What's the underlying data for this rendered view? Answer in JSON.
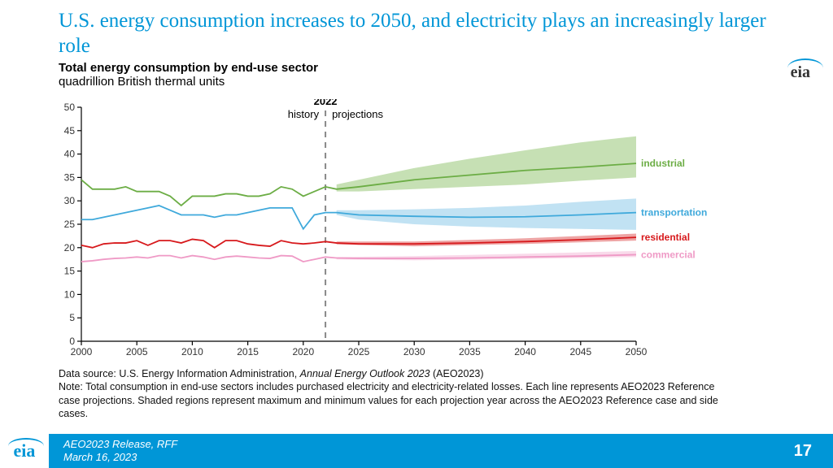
{
  "slide": {
    "title": "U.S. energy consumption increases to 2050, and electricity plays an increasingly larger role",
    "page_number": "17"
  },
  "logo_text": "eia",
  "chart": {
    "title": "Total energy consumption by end-use sector",
    "units": "quadrillion British thermal units",
    "divider_year_label": "2022",
    "history_label": "history",
    "projections_label": "projections",
    "x": {
      "min": 2000,
      "max": 2050,
      "tick_step": 5
    },
    "y": {
      "min": 0,
      "max": 50,
      "tick_step": 5
    },
    "grid_color": "#bdbdbd",
    "axis_color": "#000000",
    "background": "#ffffff",
    "divider_x": 2022,
    "series": [
      {
        "name": "industrial",
        "color": "#6cad45",
        "band_color": "#a8cf8c",
        "line_width": 1.8,
        "label": "industrial",
        "line": [
          [
            2000,
            34.5
          ],
          [
            2001,
            32.5
          ],
          [
            2002,
            32.5
          ],
          [
            2003,
            32.5
          ],
          [
            2004,
            33.0
          ],
          [
            2005,
            32.0
          ],
          [
            2006,
            32.0
          ],
          [
            2007,
            32.0
          ],
          [
            2008,
            31.0
          ],
          [
            2009,
            29.0
          ],
          [
            2010,
            31.0
          ],
          [
            2011,
            31.0
          ],
          [
            2012,
            31.0
          ],
          [
            2013,
            31.5
          ],
          [
            2014,
            31.5
          ],
          [
            2015,
            31.0
          ],
          [
            2016,
            31.0
          ],
          [
            2017,
            31.5
          ],
          [
            2018,
            33.0
          ],
          [
            2019,
            32.5
          ],
          [
            2020,
            31.0
          ],
          [
            2021,
            32.0
          ],
          [
            2022,
            33.0
          ],
          [
            2023,
            32.5
          ],
          [
            2025,
            33.0
          ],
          [
            2030,
            34.5
          ],
          [
            2035,
            35.5
          ],
          [
            2040,
            36.5
          ],
          [
            2045,
            37.2
          ],
          [
            2050,
            38.0
          ]
        ],
        "band_start": 2023,
        "band": [
          [
            2023,
            32.0,
            33.5
          ],
          [
            2025,
            32.0,
            34.5
          ],
          [
            2030,
            32.5,
            37.0
          ],
          [
            2035,
            33.0,
            39.0
          ],
          [
            2040,
            33.5,
            40.8
          ],
          [
            2045,
            34.3,
            42.5
          ],
          [
            2050,
            35.0,
            43.8
          ]
        ]
      },
      {
        "name": "transportation",
        "color": "#3fa9db",
        "band_color": "#9fd3ec",
        "line_width": 1.8,
        "label": "transportation",
        "line": [
          [
            2000,
            26.0
          ],
          [
            2001,
            26.0
          ],
          [
            2002,
            26.5
          ],
          [
            2003,
            27.0
          ],
          [
            2004,
            27.5
          ],
          [
            2005,
            28.0
          ],
          [
            2006,
            28.5
          ],
          [
            2007,
            29.0
          ],
          [
            2008,
            28.0
          ],
          [
            2009,
            27.0
          ],
          [
            2010,
            27.0
          ],
          [
            2011,
            27.0
          ],
          [
            2012,
            26.5
          ],
          [
            2013,
            27.0
          ],
          [
            2014,
            27.0
          ],
          [
            2015,
            27.5
          ],
          [
            2016,
            28.0
          ],
          [
            2017,
            28.5
          ],
          [
            2018,
            28.5
          ],
          [
            2019,
            28.5
          ],
          [
            2020,
            24.0
          ],
          [
            2021,
            27.0
          ],
          [
            2022,
            27.5
          ],
          [
            2023,
            27.5
          ],
          [
            2025,
            27.0
          ],
          [
            2030,
            26.7
          ],
          [
            2035,
            26.5
          ],
          [
            2040,
            26.6
          ],
          [
            2045,
            27.0
          ],
          [
            2050,
            27.5
          ]
        ],
        "band_start": 2023,
        "band": [
          [
            2023,
            27.0,
            28.0
          ],
          [
            2025,
            26.0,
            28.0
          ],
          [
            2030,
            25.0,
            28.2
          ],
          [
            2035,
            24.5,
            28.5
          ],
          [
            2040,
            24.2,
            29.0
          ],
          [
            2045,
            24.0,
            29.8
          ],
          [
            2050,
            23.8,
            30.5
          ]
        ]
      },
      {
        "name": "residential",
        "color": "#d7191c",
        "band_color": "#e57373",
        "line_width": 1.8,
        "label": "residential",
        "line": [
          [
            2000,
            20.5
          ],
          [
            2001,
            20.0
          ],
          [
            2002,
            20.8
          ],
          [
            2003,
            21.0
          ],
          [
            2004,
            21.0
          ],
          [
            2005,
            21.5
          ],
          [
            2006,
            20.5
          ],
          [
            2007,
            21.5
          ],
          [
            2008,
            21.5
          ],
          [
            2009,
            21.0
          ],
          [
            2010,
            21.8
          ],
          [
            2011,
            21.5
          ],
          [
            2012,
            20.0
          ],
          [
            2013,
            21.5
          ],
          [
            2014,
            21.5
          ],
          [
            2015,
            20.8
          ],
          [
            2016,
            20.5
          ],
          [
            2017,
            20.3
          ],
          [
            2018,
            21.5
          ],
          [
            2019,
            21.0
          ],
          [
            2020,
            20.8
          ],
          [
            2021,
            21.0
          ],
          [
            2022,
            21.3
          ],
          [
            2023,
            21.0
          ],
          [
            2025,
            20.8
          ],
          [
            2030,
            20.8
          ],
          [
            2035,
            21.0
          ],
          [
            2040,
            21.3
          ],
          [
            2045,
            21.7
          ],
          [
            2050,
            22.2
          ]
        ],
        "band_start": 2023,
        "band": [
          [
            2023,
            20.7,
            21.3
          ],
          [
            2030,
            20.3,
            21.3
          ],
          [
            2040,
            20.8,
            22.0
          ],
          [
            2050,
            21.5,
            23.0
          ]
        ]
      },
      {
        "name": "commercial",
        "color": "#ef9ac6",
        "band_color": "#f6c6de",
        "line_width": 1.8,
        "label": "commercial",
        "line": [
          [
            2000,
            17.0
          ],
          [
            2001,
            17.2
          ],
          [
            2002,
            17.5
          ],
          [
            2003,
            17.7
          ],
          [
            2004,
            17.8
          ],
          [
            2005,
            18.0
          ],
          [
            2006,
            17.8
          ],
          [
            2007,
            18.3
          ],
          [
            2008,
            18.3
          ],
          [
            2009,
            17.8
          ],
          [
            2010,
            18.3
          ],
          [
            2011,
            18.0
          ],
          [
            2012,
            17.5
          ],
          [
            2013,
            18.0
          ],
          [
            2014,
            18.2
          ],
          [
            2015,
            18.0
          ],
          [
            2016,
            17.8
          ],
          [
            2017,
            17.7
          ],
          [
            2018,
            18.3
          ],
          [
            2019,
            18.2
          ],
          [
            2020,
            17.0
          ],
          [
            2021,
            17.5
          ],
          [
            2022,
            18.0
          ],
          [
            2023,
            17.8
          ],
          [
            2025,
            17.7
          ],
          [
            2030,
            17.7
          ],
          [
            2035,
            17.8
          ],
          [
            2040,
            18.0
          ],
          [
            2045,
            18.2
          ],
          [
            2050,
            18.5
          ]
        ],
        "band_start": 2023,
        "band": [
          [
            2023,
            17.5,
            18.0
          ],
          [
            2030,
            17.3,
            18.2
          ],
          [
            2040,
            17.6,
            18.7
          ],
          [
            2050,
            18.0,
            19.3
          ]
        ]
      }
    ]
  },
  "note": {
    "line1a": "Data source: U.S. Energy Information Administration, ",
    "line1b_ital": "Annual Energy Outlook 2023",
    "line1c": " (AEO2023)",
    "line2": "Note: Total consumption in end-use sectors includes purchased electricity and electricity-related losses. Each line represents AEO2023 Reference case projections. Shaded regions represent maximum and minimum values for each projection year across the AEO2023 Reference case and side cases."
  },
  "footer": {
    "line1": "AEO2023 Release, RFF",
    "line2": "March 16, 2023"
  }
}
